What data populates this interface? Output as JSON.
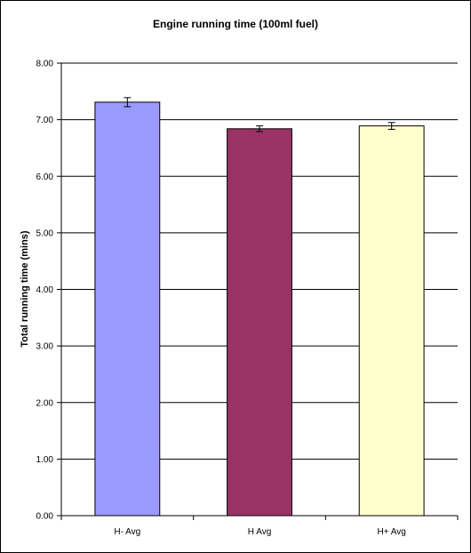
{
  "chart_data": {
    "type": "bar",
    "title": "Engine running time (100ml fuel)",
    "xlabel": "",
    "ylabel": "Total running time (mins)",
    "categories": [
      "H- Avg",
      "H Avg",
      "H+ Avg"
    ],
    "values": [
      7.31,
      6.84,
      6.89
    ],
    "error": [
      0.08,
      0.05,
      0.06
    ],
    "colors": [
      "#9999ff",
      "#993366",
      "#ffffcc"
    ],
    "ylim": [
      0,
      8
    ],
    "yticks": [
      "0.00",
      "1.00",
      "2.00",
      "3.00",
      "4.00",
      "5.00",
      "6.00",
      "7.00",
      "8.00"
    ],
    "grid": true,
    "legend": "none"
  }
}
